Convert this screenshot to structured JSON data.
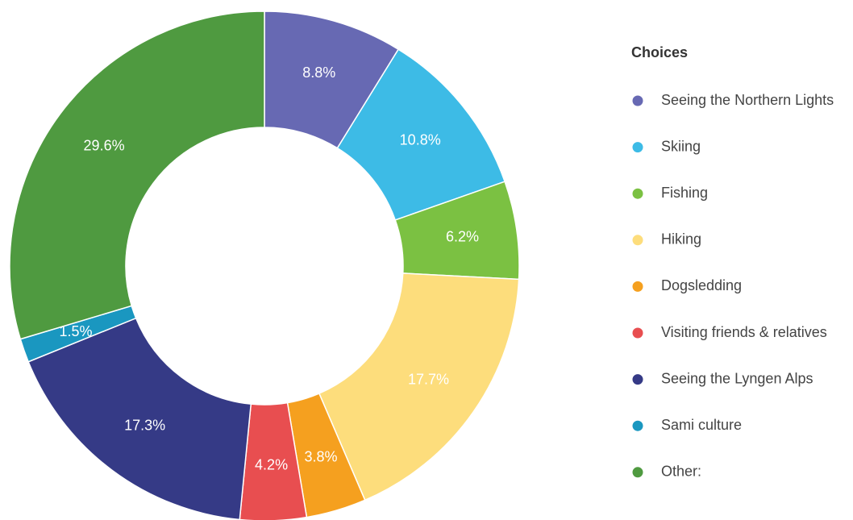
{
  "chart_data": {
    "type": "pie",
    "legend_title": "Choices",
    "categories": [
      "Seeing the Northern Lights",
      "Skiing",
      "Fishing",
      "Hiking",
      "Dogsledding",
      "Visiting friends & relatives",
      "Seeing the Lyngen Alps",
      "Sami culture",
      "Other:"
    ],
    "values": [
      8.8,
      10.8,
      6.2,
      17.7,
      3.8,
      4.2,
      17.3,
      1.5,
      29.6
    ],
    "value_labels": [
      "8.8%",
      "10.8%",
      "6.2%",
      "17.7%",
      "3.8%",
      "4.2%",
      "17.3%",
      "1.5%",
      "29.6%"
    ],
    "colors": [
      "#6769b3",
      "#3dbbe6",
      "#7bc142",
      "#fddd7c",
      "#f5a01f",
      "#e84e50",
      "#353a86",
      "#1a97c0",
      "#4f9a40"
    ],
    "donut": true,
    "legend": "right"
  }
}
